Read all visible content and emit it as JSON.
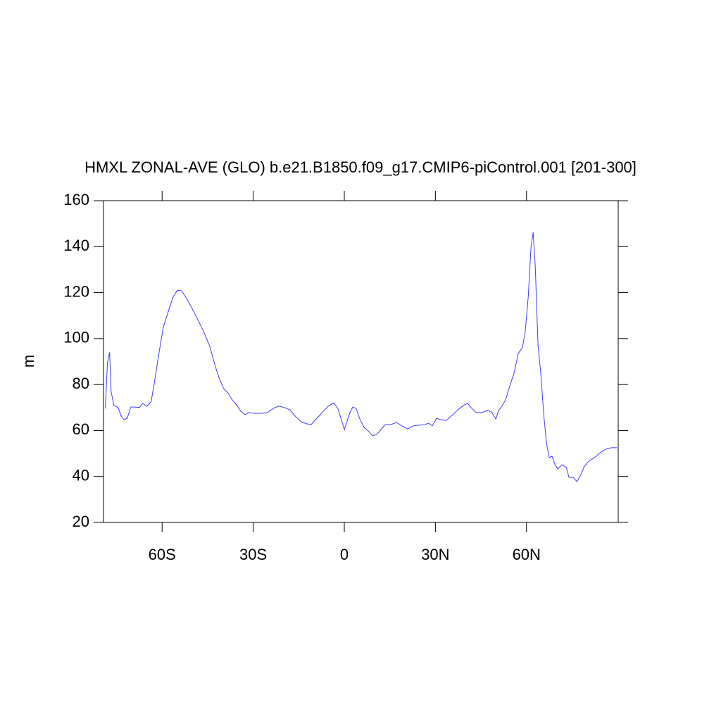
{
  "chart_data": {
    "type": "line",
    "title": "HMXL ZONAL-AVE (GLO) b.e21.B1850.f09_g17.CMIP6-piControl.001 [201-300]",
    "y_label": "m",
    "xlim": [
      -79.3,
      90.2
    ],
    "ylim": [
      20,
      160
    ],
    "xticks": [
      {
        "value": -60,
        "label": "60S"
      },
      {
        "value": -30,
        "label": "30S"
      },
      0,
      {
        "value": 30,
        "label": "30N"
      },
      {
        "value": 60,
        "label": "60N"
      }
    ],
    "yticks": [
      20,
      40,
      60,
      80,
      100,
      120,
      140,
      160
    ],
    "grid": false,
    "series": [
      {
        "color": "#3c3cff",
        "x": [
          -78.7,
          -78,
          -77.3,
          -76.8,
          -75.9,
          -74.5,
          -73.5,
          -72.6,
          -71.5,
          -70.3,
          -68.9,
          -67.5,
          -66.4,
          -65,
          -63.6,
          -62.4,
          -61,
          -59.6,
          -57.8,
          -56.4,
          -55,
          -53.6,
          -51.7,
          -49.9,
          -48,
          -46.2,
          -44.3,
          -42.5,
          -41,
          -39.7,
          -38.3,
          -36.9,
          -35.5,
          -34.1,
          -32.7,
          -31.3,
          -29.5,
          -27.1,
          -25.3,
          -23.4,
          -21.6,
          -19.7,
          -17.9,
          -16,
          -14.2,
          -12.3,
          -10.9,
          -9.5,
          -8.1,
          -6.7,
          -5.3,
          -3.5,
          -2.1,
          -0.7,
          0,
          0.9,
          1.9,
          2.8,
          3.9,
          5.1,
          6.5,
          7.9,
          9.3,
          10.7,
          12.1,
          13.5,
          15.3,
          17.2,
          19,
          20.9,
          22.7,
          24.6,
          26.5,
          27.8,
          29,
          30.4,
          31.8,
          33.6,
          35.5,
          37.4,
          39.2,
          40.6,
          42,
          43.4,
          45.2,
          47.1,
          48.5,
          49.9,
          50.8,
          51.7,
          53.1,
          54.5,
          55.9,
          57.3,
          58.7,
          59.6,
          60.6,
          61.5,
          62.2,
          62.9,
          63.8,
          64.7,
          65.7,
          66.6,
          67.5,
          68.4,
          69.4,
          70.3,
          71.7,
          73.1,
          74,
          75.4,
          76.6,
          77.7,
          79.1,
          80.5,
          82.4,
          84.2,
          86.1,
          87.9,
          89.8
        ],
        "values": [
          69.6,
          89.5,
          94,
          77,
          71,
          70,
          66.5,
          64.7,
          65.3,
          70.2,
          70.2,
          70,
          71.8,
          70.5,
          72.7,
          82,
          94,
          105,
          112.5,
          118,
          121,
          120.8,
          117,
          112.5,
          107.6,
          102.7,
          96.6,
          88,
          82,
          78.2,
          76.4,
          73.3,
          71.2,
          68.4,
          66.9,
          67.8,
          67.5,
          67.5,
          67.8,
          69.6,
          70.6,
          70,
          69,
          66,
          63.8,
          62.9,
          62.6,
          64.7,
          66.6,
          68.7,
          70.6,
          72,
          69.6,
          63.5,
          60.4,
          64,
          68,
          70.2,
          69.6,
          65,
          61.4,
          59.8,
          57.7,
          58.3,
          60.4,
          62.6,
          62.6,
          63.5,
          62,
          60.7,
          62,
          62.3,
          62.6,
          63.2,
          62,
          65.3,
          64.7,
          64.4,
          66.6,
          69,
          70.9,
          71.8,
          69.6,
          67.8,
          67.8,
          68.7,
          68.1,
          65,
          68.7,
          70.2,
          73.3,
          79.4,
          85,
          93.5,
          96.3,
          103.3,
          118.7,
          140,
          146.2,
          131,
          97,
          85,
          66.6,
          54.3,
          48.2,
          48.8,
          45.1,
          43.3,
          45.1,
          43.9,
          39.6,
          39.6,
          37.8,
          40.2,
          44.5,
          46.7,
          48.2,
          50.3,
          51.9,
          52.5,
          52.5
        ]
      }
    ]
  }
}
